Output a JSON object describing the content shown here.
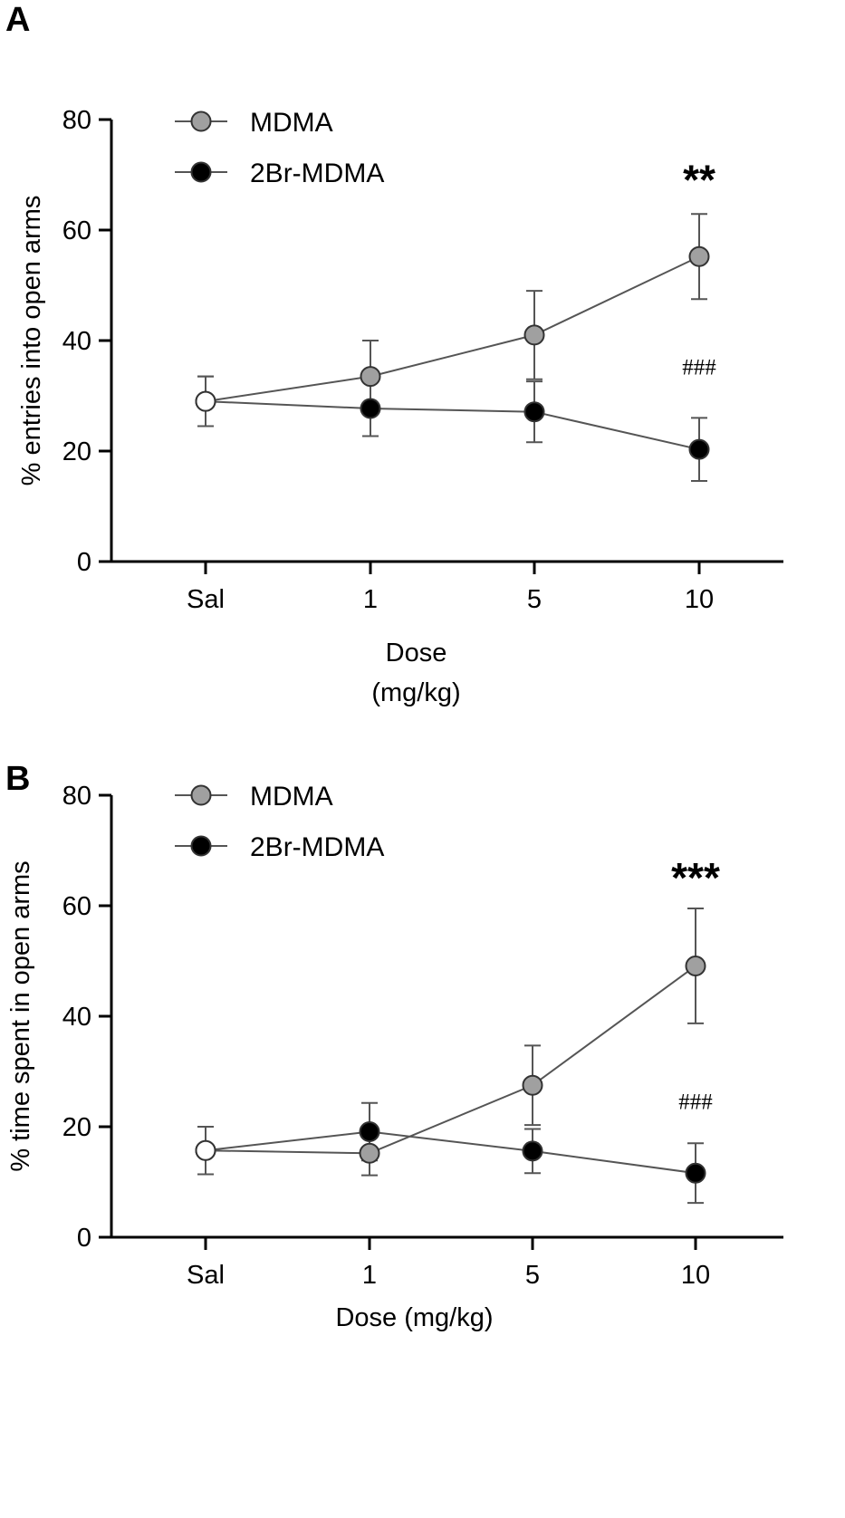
{
  "chart_data": [
    {
      "type": "line",
      "panel_label": "A",
      "title": "",
      "categories": [
        "Sal",
        "1",
        "5",
        "10"
      ],
      "xlabel_lines": [
        "Dose",
        "(mg/kg)"
      ],
      "ylabel": "% entries into open arms",
      "ylim": [
        0,
        80
      ],
      "yticks": [
        "0",
        "20",
        "40",
        "60",
        "80"
      ],
      "legend_position": "top-left",
      "series": [
        {
          "name": "MDMA",
          "color": "#a0a0a0",
          "values": [
            29,
            33.5,
            41,
            55.2
          ],
          "errors": [
            4.5,
            6.5,
            8,
            7.7
          ]
        },
        {
          "name": "2Br-MDMA",
          "color": "#000000",
          "values": [
            29,
            27.7,
            27.1,
            20.3
          ],
          "errors": [
            4.5,
            5,
            5.5,
            5.7
          ]
        }
      ],
      "saline_marker_color": "#ffffff",
      "annotations": [
        {
          "text": "**",
          "category": "10",
          "style": "star"
        },
        {
          "text": "###",
          "category": "10",
          "style": "hash"
        }
      ]
    },
    {
      "type": "line",
      "panel_label": "B",
      "title": "",
      "categories": [
        "Sal",
        "1",
        "5",
        "10"
      ],
      "xlabel_lines": [
        "Dose (mg/kg)"
      ],
      "ylabel": "% time spent in open arms",
      "ylim": [
        0,
        80
      ],
      "yticks": [
        "0",
        "20",
        "40",
        "60",
        "80"
      ],
      "legend_position": "top-left",
      "series": [
        {
          "name": "MDMA",
          "color": "#a0a0a0",
          "values": [
            15.7,
            15.2,
            27.5,
            49.1
          ],
          "errors": [
            4.3,
            4,
            7.2,
            10.4
          ]
        },
        {
          "name": "2Br-MDMA",
          "color": "#000000",
          "values": [
            15.7,
            19.1,
            15.6,
            11.6
          ],
          "errors": [
            4.3,
            5.2,
            4,
            5.4
          ]
        }
      ],
      "saline_marker_color": "#ffffff",
      "annotations": [
        {
          "text": "***",
          "category": "10",
          "style": "star"
        },
        {
          "text": "###",
          "category": "10",
          "style": "hash"
        }
      ]
    }
  ]
}
